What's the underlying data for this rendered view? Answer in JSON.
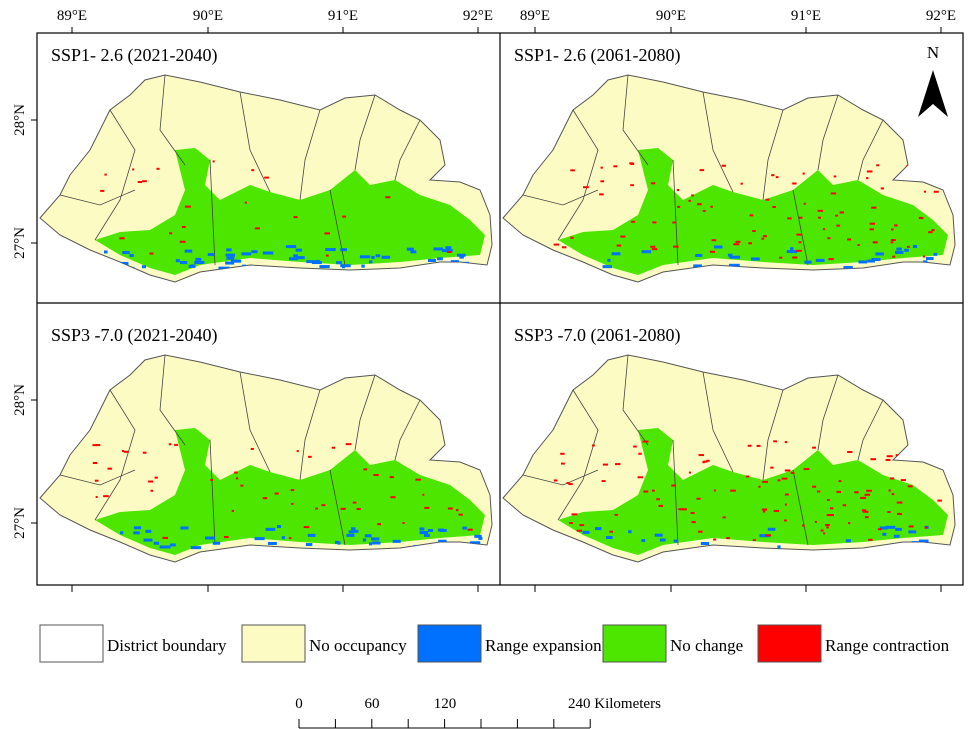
{
  "panels": [
    {
      "title": "SSP1- 2.6 (2021-2040)"
    },
    {
      "title": "SSP1- 2.6 (2061-2080)"
    },
    {
      "title": "SSP3 -7.0 (2021-2040)"
    },
    {
      "title": "SSP3 -7.0 (2061-2080)"
    }
  ],
  "longitude_labels": [
    "89°E",
    "90°E",
    "91°E",
    "92°E"
  ],
  "latitude_labels": [
    "28°N",
    "27°N"
  ],
  "north": "N",
  "legend": [
    "District boundary",
    "No occupancy",
    "Range expansion",
    "No change",
    "Range contraction"
  ],
  "scale_bar": {
    "labels": [
      "0",
      "60",
      "120",
      "240 Kilometers"
    ]
  }
}
